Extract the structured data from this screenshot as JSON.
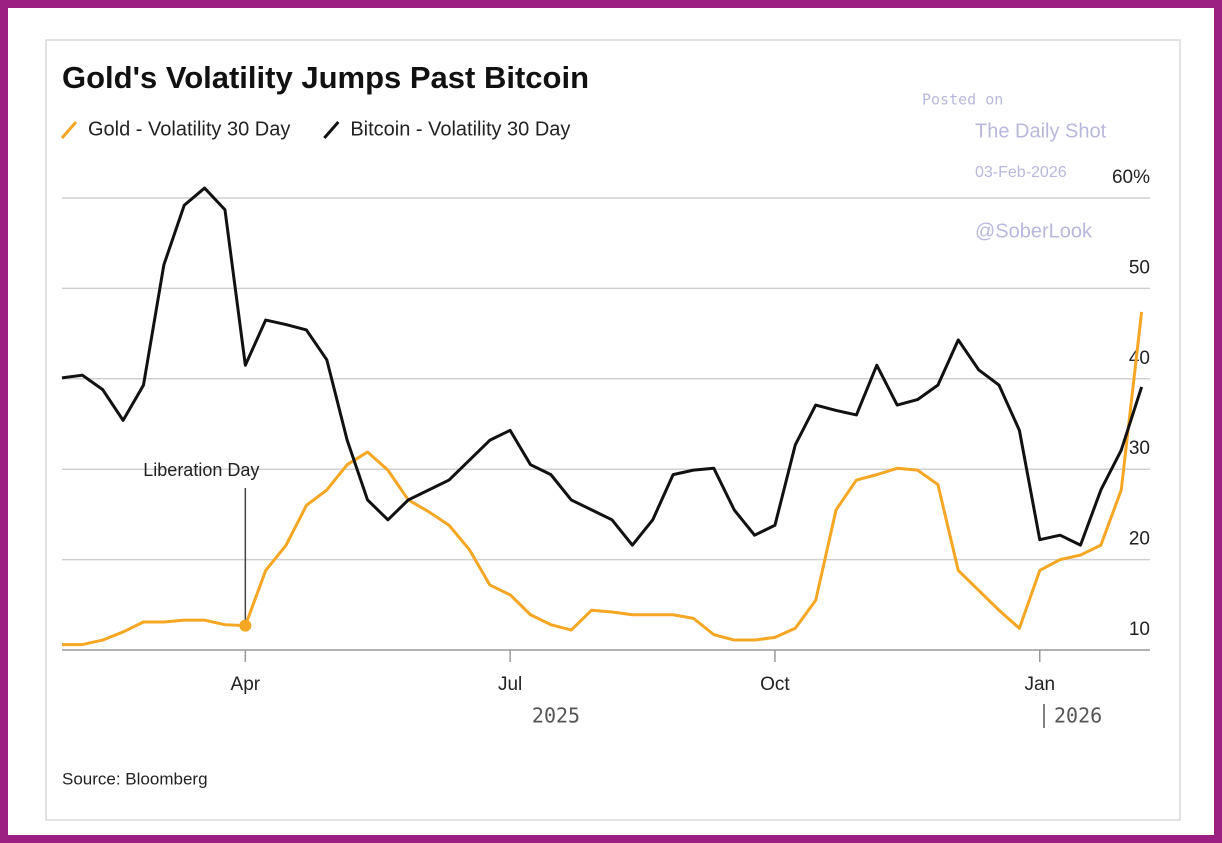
{
  "chart_data": {
    "type": "line",
    "title": "Gold's Volatility Jumps Past Bitcoin",
    "categories": [
      null,
      null,
      null,
      null,
      null,
      null,
      null,
      null,
      null,
      "Apr",
      null,
      null,
      null,
      null,
      null,
      null,
      null,
      null,
      null,
      null,
      null,
      null,
      "Jul",
      null,
      null,
      null,
      null,
      null,
      null,
      null,
      null,
      null,
      null,
      null,
      null,
      "Oct",
      null,
      null,
      null,
      null,
      null,
      null,
      null,
      null,
      null,
      null,
      null,
      null,
      "Jan",
      null,
      null,
      null,
      null,
      null
    ],
    "series": [
      {
        "name": "Gold - Volatility 30 Day",
        "color": "#f5a623",
        "values": [
          10.6,
          10.6,
          11.1,
          12,
          13.1,
          13.1,
          13.3,
          13.3,
          12.8,
          12.7,
          18.8,
          21.6,
          26,
          27.7,
          30.5,
          31.9,
          29.9,
          26.6,
          25.3,
          23.8,
          21.1,
          17.2,
          16.1,
          13.9,
          12.8,
          12.2,
          14.4,
          14.2,
          13.9,
          13.9,
          13.9,
          13.5,
          11.7,
          11.1,
          11.1,
          11.4,
          12.4,
          15.5,
          25.5,
          28.8,
          29.4,
          30.1,
          29.9,
          28.3,
          18.8,
          16.6,
          14.4,
          12.4,
          18.8,
          20,
          20.5,
          21.6,
          27.7,
          47.4
        ]
      },
      {
        "name": "Bitcoin - Volatility 30 Day",
        "color": "#111111",
        "values": [
          40.1,
          40.4,
          38.8,
          35.4,
          39.3,
          52.6,
          59.2,
          61.1,
          58.7,
          41.5,
          46.5,
          46,
          45.4,
          42.1,
          33.2,
          26.6,
          24.4,
          26.6,
          27.7,
          28.8,
          31,
          33.2,
          34.3,
          30.5,
          29.4,
          26.6,
          25.5,
          24.4,
          21.6,
          24.4,
          29.4,
          29.9,
          30.1,
          25.5,
          22.7,
          23.8,
          32.7,
          37.1,
          36.5,
          36,
          41.5,
          37.1,
          37.7,
          39.3,
          44.3,
          41,
          39.3,
          34.3,
          22.2,
          22.7,
          21.6,
          27.7,
          32.1,
          39.1
        ]
      }
    ],
    "ylim": [
      10,
      62
    ],
    "yticks": [
      10,
      20,
      30,
      40,
      50,
      {
        "value": 60,
        "label": "60%"
      }
    ],
    "grid": true,
    "year_labels": [
      "2025",
      "2026"
    ],
    "annotations": [
      {
        "text": "Liberation Day",
        "x": "Apr"
      }
    ],
    "source": "Source: Bloomberg",
    "watermark": [
      "Posted on",
      "The Daily Shot",
      "03-Feb-2026",
      "@SoberLook"
    ]
  }
}
